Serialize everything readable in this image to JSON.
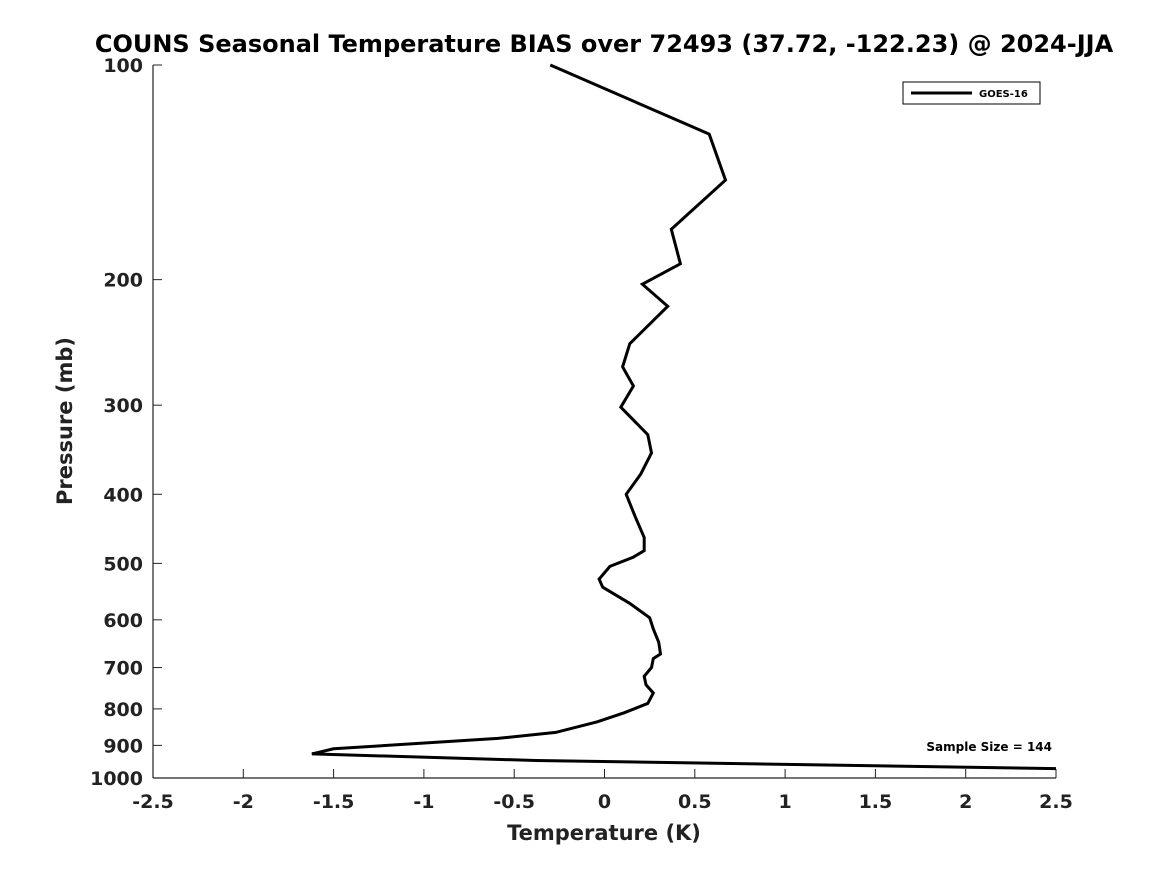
{
  "chart_data": {
    "type": "line",
    "title": "COUNS Seasonal Temperature BIAS over 72493 (37.72, -122.23) @ 2024-JJA",
    "xlabel": "Temperature (K)",
    "ylabel": "Pressure (mb)",
    "xlim": [
      -2.5,
      2.5
    ],
    "ylim": [
      100,
      1000
    ],
    "y_scale": "log",
    "y_reversed": true,
    "x_ticks": [
      "-2.5",
      "-2",
      "-1.5",
      "-1",
      "-0.5",
      "0",
      "0.5",
      "1",
      "1.5",
      "2",
      "2.5"
    ],
    "x_tick_values": [
      -2.5,
      -2,
      -1.5,
      -1,
      -0.5,
      0,
      0.5,
      1,
      1.5,
      2,
      2.5
    ],
    "y_ticks": [
      "100",
      "200",
      "300",
      "400",
      "500",
      "600",
      "700",
      "800",
      "900",
      "1000"
    ],
    "y_tick_values": [
      100,
      200,
      300,
      400,
      500,
      600,
      700,
      800,
      900,
      1000
    ],
    "grid": false,
    "legend_position": "top-right",
    "annotation": "Sample Size = 144",
    "series": [
      {
        "name": "GOES-16",
        "color": "#000000",
        "x": [
          -0.3,
          0.58,
          0.67,
          0.37,
          0.42,
          0.21,
          0.35,
          0.14,
          0.1,
          0.16,
          0.09,
          0.24,
          0.26,
          0.2,
          0.12,
          0.17,
          0.22,
          0.22,
          0.16,
          0.03,
          -0.03,
          -0.01,
          0.14,
          0.25,
          0.27,
          0.3,
          0.31,
          0.27,
          0.26,
          0.22,
          0.23,
          0.27,
          0.24,
          0.11,
          -0.04,
          -0.27,
          -0.59,
          -1.5,
          -1.62,
          -0.38,
          2.5
        ],
        "y": [
          100,
          125,
          145,
          170,
          190,
          203,
          218,
          246,
          265,
          282,
          302,
          330,
          350,
          375,
          400,
          430,
          460,
          480,
          490,
          505,
          526,
          540,
          569,
          596,
          618,
          645,
          670,
          680,
          700,
          720,
          740,
          760,
          786,
          810,
          834,
          863,
          880,
          910,
          925,
          945,
          970
        ]
      }
    ]
  }
}
